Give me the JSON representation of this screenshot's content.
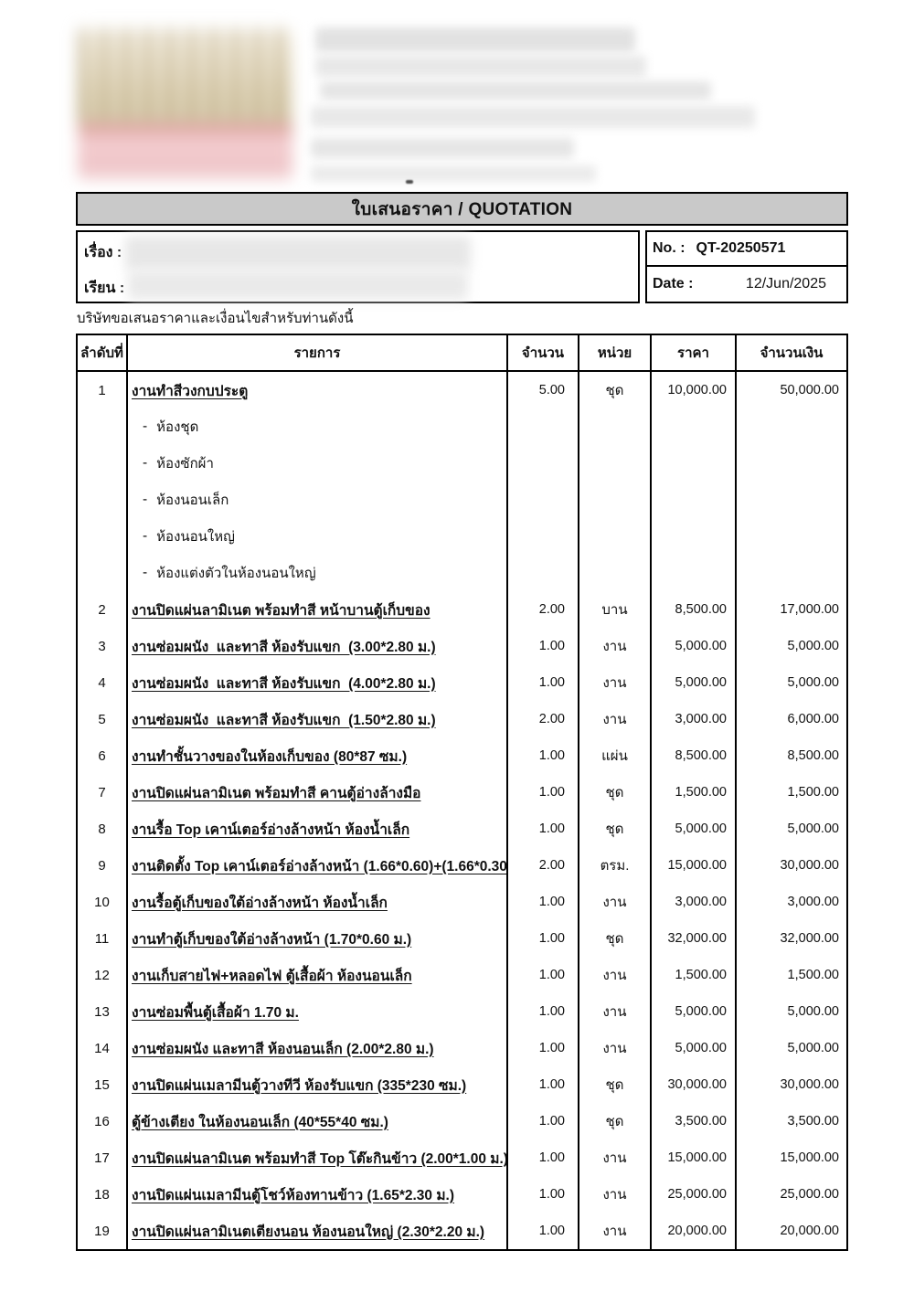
{
  "doc": {
    "title_bar": "ใบเสนอราคา / QUOTATION",
    "subject_label": "เรื่อง :",
    "attention_label": "เรียน :",
    "no_label": "No. :",
    "no_value": "QT-20250571",
    "date_label": "Date :",
    "date_value": "12/Jun/2025",
    "intro": "บริษัทขอเสนอราคาและเงื่อนไขสำหรับท่านดังนี้"
  },
  "table": {
    "headers": [
      "ลำดับที่",
      "รายการ",
      "จำนวน",
      "หน่วย",
      "ราคา",
      "จำนวนเงิน"
    ],
    "rows": [
      {
        "no": "1",
        "desc": "งานทำสีวงกบประตู",
        "qty": "5.00",
        "unit": "ชุด",
        "price": "10,000.00",
        "amount": "50,000.00",
        "subs": [
          "ห้องชุด",
          "ห้องซักผ้า",
          "ห้องนอนเล็ก",
          "ห้องนอนใหญ่",
          "ห้องแต่งตัวในห้องนอนใหญ่"
        ]
      },
      {
        "no": "2",
        "desc": "งานปิดแผ่นลามิเนต พร้อมทำสี หน้าบานตู้เก็บของ",
        "qty": "2.00",
        "unit": "บาน",
        "price": "8,500.00",
        "amount": "17,000.00"
      },
      {
        "no": "3",
        "desc": "งานซ่อมผนัง  และทาสี ห้องรับแขก  (3.00*2.80 ม.)",
        "qty": "1.00",
        "unit": "งาน",
        "price": "5,000.00",
        "amount": "5,000.00"
      },
      {
        "no": "4",
        "desc": "งานซ่อมผนัง  และทาสี ห้องรับแขก  (4.00*2.80 ม.)",
        "qty": "1.00",
        "unit": "งาน",
        "price": "5,000.00",
        "amount": "5,000.00"
      },
      {
        "no": "5",
        "desc": "งานซ่อมผนัง  และทาสี ห้องรับแขก  (1.50*2.80 ม.)",
        "qty": "2.00",
        "unit": "งาน",
        "price": "3,000.00",
        "amount": "6,000.00"
      },
      {
        "no": "6",
        "desc": "งานทำชั้นวางของในห้องเก็บของ (80*87 ซม.)",
        "qty": "1.00",
        "unit": "แผ่น",
        "price": "8,500.00",
        "amount": "8,500.00"
      },
      {
        "no": "7",
        "desc": "งานปิดแผ่นลามิเนต พร้อมทำสี คานตู้อ่างล้างมือ",
        "qty": "1.00",
        "unit": "ชุด",
        "price": "1,500.00",
        "amount": "1,500.00"
      },
      {
        "no": "8",
        "desc": "งานรื้อ Top เคาน์เตอร์อ่างล้างหน้า ห้องน้ำเล็ก",
        "qty": "1.00",
        "unit": "ชุด",
        "price": "5,000.00",
        "amount": "5,000.00"
      },
      {
        "no": "9",
        "desc": "งานติดตั้ง Top เคาน์เตอร์อ่างล้างหน้า (1.66*0.60)+(1.66*0.30",
        "qty": "2.00",
        "unit": "ตรม.",
        "price": "15,000.00",
        "amount": "30,000.00"
      },
      {
        "no": "10",
        "desc": "งานรื้อตู้เก็บของใต้อ่างล้างหน้า ห้องน้ำเล็ก",
        "qty": "1.00",
        "unit": "งาน",
        "price": "3,000.00",
        "amount": "3,000.00"
      },
      {
        "no": "11",
        "desc": "งานทำตู้เก็บของใต้อ่างล้างหน้า (1.70*0.60 ม.)",
        "qty": "1.00",
        "unit": "ชุด",
        "price": "32,000.00",
        "amount": "32,000.00"
      },
      {
        "no": "12",
        "desc": "งานเก็บสายไฟ+หลอดไฟ ตู้เสื้อผ้า ห้องนอนเล็ก",
        "qty": "1.00",
        "unit": "งาน",
        "price": "1,500.00",
        "amount": "1,500.00"
      },
      {
        "no": "13",
        "desc": "งานซ่อมพื้นตู้เสื้อผ้า 1.70 ม.",
        "qty": "1.00",
        "unit": "งาน",
        "price": "5,000.00",
        "amount": "5,000.00"
      },
      {
        "no": "14",
        "desc": "งานซ่อมผนัง และทาสี ห้องนอนเล็ก (2.00*2.80 ม.)",
        "qty": "1.00",
        "unit": "งาน",
        "price": "5,000.00",
        "amount": "5,000.00"
      },
      {
        "no": "15",
        "desc": "งานปิดแผ่นเมลามีนตู้วางทีวี ห้องรับแขก (335*230 ซม.)",
        "qty": "1.00",
        "unit": "ชุด",
        "price": "30,000.00",
        "amount": "30,000.00"
      },
      {
        "no": "16",
        "desc": "ตู้ข้างเตียง ในห้องนอนเล็ก (40*55*40 ซม.)",
        "qty": "1.00",
        "unit": "ชุด",
        "price": "3,500.00",
        "amount": "3,500.00"
      },
      {
        "no": "17",
        "desc": "งานปิดแผ่นลามิเนต พร้อมทำสี Top โต๊ะกินข้าว (2.00*1.00 ม.)",
        "qty": "1.00",
        "unit": "งาน",
        "price": "15,000.00",
        "amount": "15,000.00"
      },
      {
        "no": "18",
        "desc": "งานปิดแผ่นเมลามีนตู้โชว์ห้องทานข้าว (1.65*2.30 ม.)",
        "qty": "1.00",
        "unit": "งาน",
        "price": "25,000.00",
        "amount": "25,000.00"
      },
      {
        "no": "19",
        "desc": "งานปิดแผ่นลามิเนตเตียงนอน ห้องนอนใหญ่ (2.30*2.20 ม.)",
        "qty": "1.00",
        "unit": "งาน",
        "price": "20,000.00",
        "amount": "20,000.00"
      }
    ]
  }
}
